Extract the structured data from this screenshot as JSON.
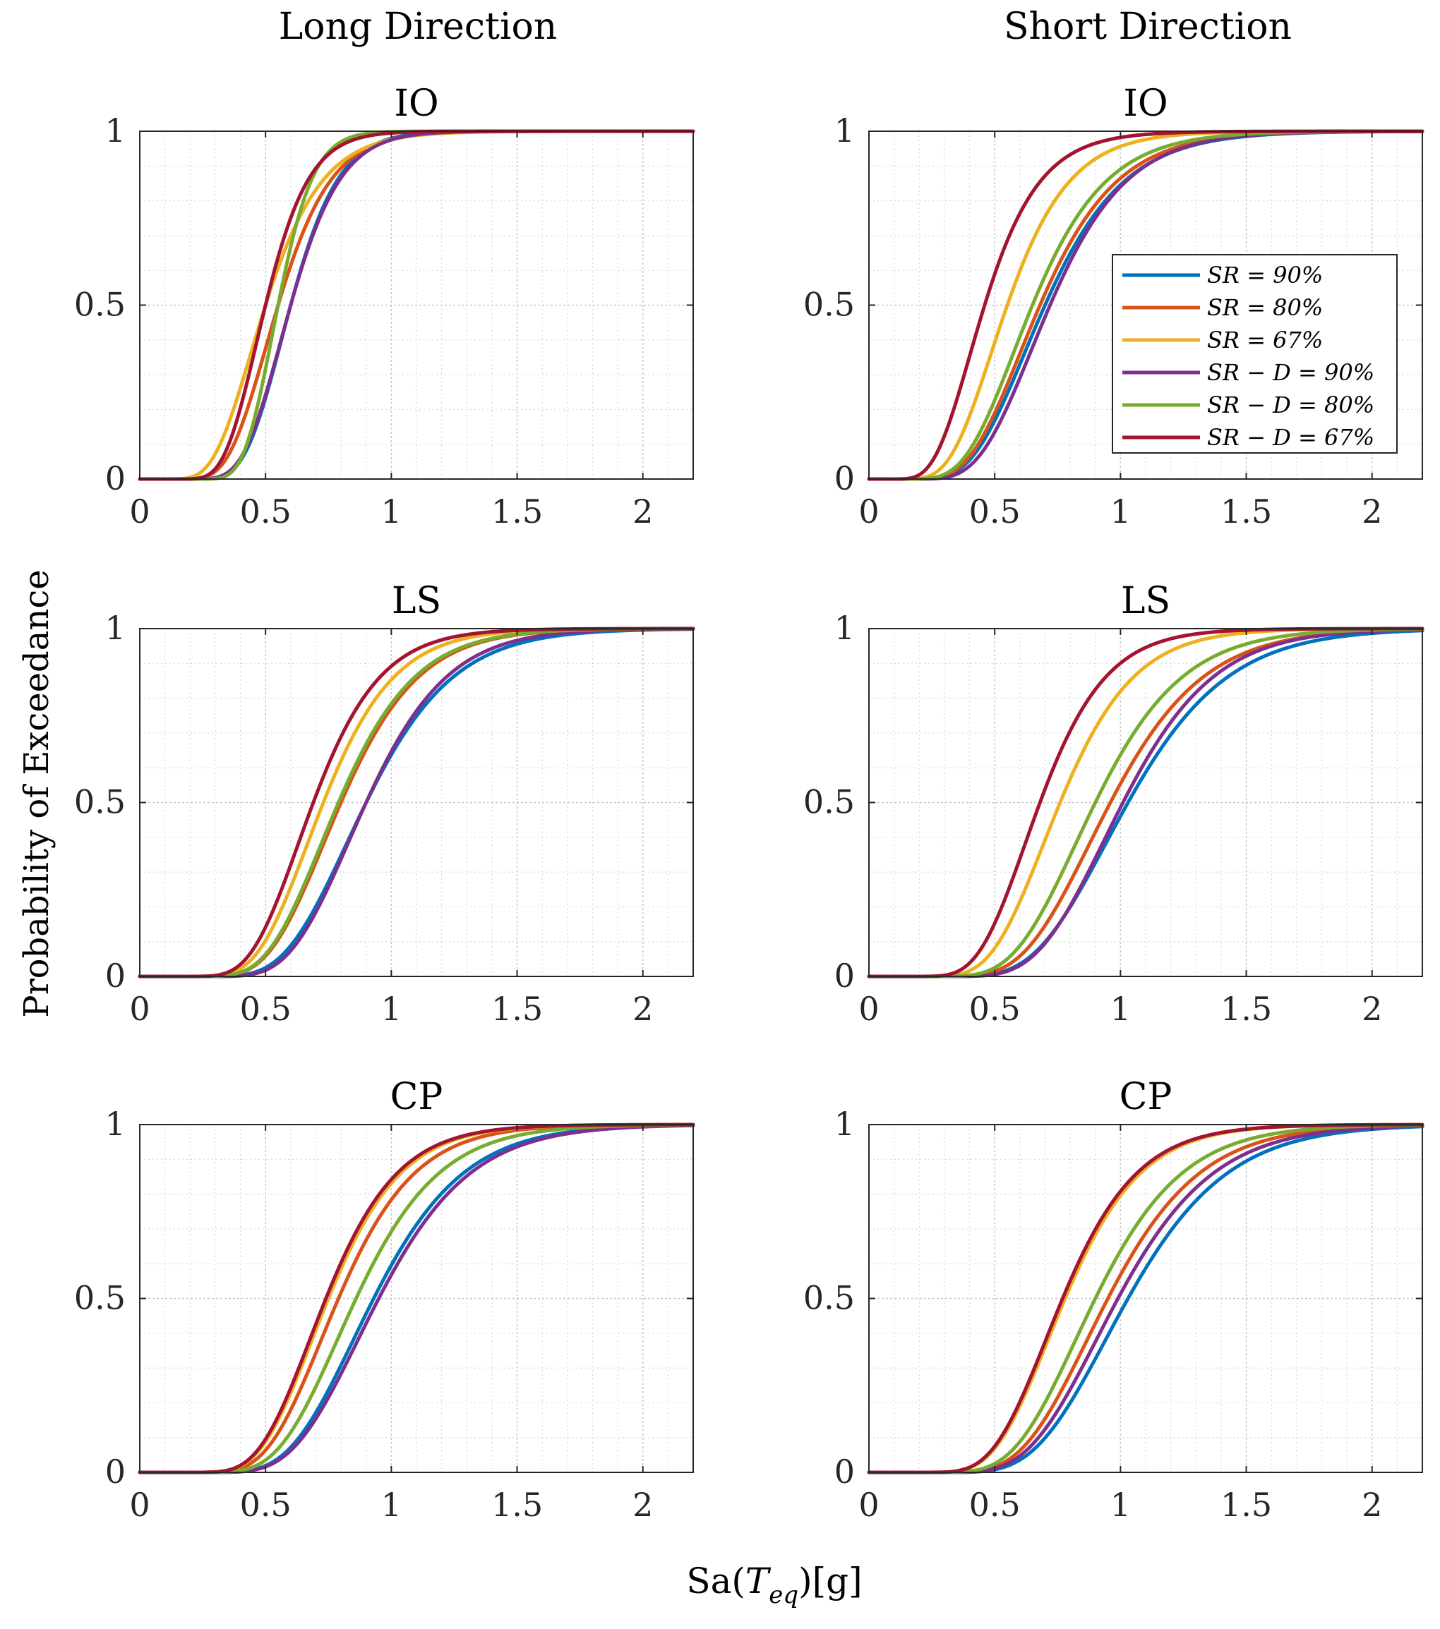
{
  "figure": {
    "column_titles": [
      "Long Direction",
      "Short Direction"
    ],
    "ylabel": "Probability of Exceedance",
    "xlabel_main": "Sa(",
    "xlabel_T": "T",
    "xlabel_sub": "eq",
    "xlabel_tail": ")[g]"
  },
  "legend": {
    "entries": [
      {
        "label": "SR = 90%",
        "color": "#0072BD"
      },
      {
        "label": "SR = 80%",
        "color": "#D95319"
      },
      {
        "label": "SR = 67%",
        "color": "#EDB120"
      },
      {
        "label": "SR − D = 90%",
        "color": "#7E2F8E"
      },
      {
        "label": "SR − D = 80%",
        "color": "#77AC30"
      },
      {
        "label": "SR − D = 67%",
        "color": "#A2142F"
      }
    ],
    "placement": "top-right panel, right-center"
  },
  "chart_data": [
    {
      "type": "line",
      "title": "IO",
      "column": "Long Direction",
      "xlim": [
        0,
        2.2
      ],
      "ylim": [
        0,
        1
      ],
      "xticks": [
        "0",
        "0.5",
        "1",
        "1.5",
        "2"
      ],
      "yticks": [
        "0",
        "0.5",
        "1"
      ],
      "curve_model": "lognormal CDF (median, beta)",
      "series": [
        {
          "name": "SR = 90%",
          "color": "#0072BD",
          "median": 0.6,
          "beta": 0.25
        },
        {
          "name": "SR = 80%",
          "color": "#D95319",
          "median": 0.55,
          "beta": 0.3
        },
        {
          "name": "SR = 67%",
          "color": "#EDB120",
          "median": 0.5,
          "beta": 0.35
        },
        {
          "name": "SR − D = 90%",
          "color": "#7E2F8E",
          "median": 0.6,
          "beta": 0.26
        },
        {
          "name": "SR − D = 80%",
          "color": "#77AC30",
          "median": 0.55,
          "beta": 0.2
        },
        {
          "name": "SR − D = 67%",
          "color": "#A2142F",
          "median": 0.5,
          "beta": 0.27
        }
      ]
    },
    {
      "type": "line",
      "title": "IO",
      "column": "Short Direction",
      "xlim": [
        0,
        2.2
      ],
      "ylim": [
        0,
        1
      ],
      "xticks": [
        "0",
        "0.5",
        "1",
        "1.5",
        "2"
      ],
      "yticks": [
        "0",
        "0.5",
        "1"
      ],
      "curve_model": "lognormal CDF (median, beta)",
      "series": [
        {
          "name": "SR = 90%",
          "color": "#0072BD",
          "median": 0.7,
          "beta": 0.35
        },
        {
          "name": "SR = 80%",
          "color": "#D95319",
          "median": 0.68,
          "beta": 0.35
        },
        {
          "name": "SR = 67%",
          "color": "#EDB120",
          "median": 0.55,
          "beta": 0.35
        },
        {
          "name": "SR − D = 90%",
          "color": "#7E2F8E",
          "median": 0.72,
          "beta": 0.33
        },
        {
          "name": "SR − D = 80%",
          "color": "#77AC30",
          "median": 0.65,
          "beta": 0.35
        },
        {
          "name": "SR − D = 67%",
          "color": "#A2142F",
          "median": 0.46,
          "beta": 0.37
        }
      ]
    },
    {
      "type": "line",
      "title": "LS",
      "column": "Long Direction",
      "xlim": [
        0,
        2.2
      ],
      "ylim": [
        0,
        1
      ],
      "xticks": [
        "0",
        "0.5",
        "1",
        "1.5",
        "2"
      ],
      "yticks": [
        "0",
        "0.5",
        "1"
      ],
      "curve_model": "lognormal CDF (median, beta)",
      "series": [
        {
          "name": "SR = 90%",
          "color": "#0072BD",
          "median": 0.9,
          "beta": 0.3
        },
        {
          "name": "SR = 80%",
          "color": "#D95319",
          "median": 0.8,
          "beta": 0.3
        },
        {
          "name": "SR = 67%",
          "color": "#EDB120",
          "median": 0.73,
          "beta": 0.3
        },
        {
          "name": "SR − D = 90%",
          "color": "#7E2F8E",
          "median": 0.9,
          "beta": 0.28
        },
        {
          "name": "SR − D = 80%",
          "color": "#77AC30",
          "median": 0.79,
          "beta": 0.3
        },
        {
          "name": "SR − D = 67%",
          "color": "#A2142F",
          "median": 0.69,
          "beta": 0.3
        }
      ]
    },
    {
      "type": "line",
      "title": "LS",
      "column": "Short Direction",
      "xlim": [
        0,
        2.2
      ],
      "ylim": [
        0,
        1
      ],
      "xticks": [
        "0",
        "0.5",
        "1",
        "1.5",
        "2"
      ],
      "yticks": [
        "0",
        "0.5",
        "1"
      ],
      "curve_model": "lognormal CDF (median, beta)",
      "series": [
        {
          "name": "SR = 90%",
          "color": "#0072BD",
          "median": 1.03,
          "beta": 0.3
        },
        {
          "name": "SR = 80%",
          "color": "#D95319",
          "median": 0.96,
          "beta": 0.3
        },
        {
          "name": "SR = 67%",
          "color": "#EDB120",
          "median": 0.76,
          "beta": 0.3
        },
        {
          "name": "SR − D = 90%",
          "color": "#7E2F8E",
          "median": 1.01,
          "beta": 0.28
        },
        {
          "name": "SR − D = 80%",
          "color": "#77AC30",
          "median": 0.9,
          "beta": 0.3
        },
        {
          "name": "SR − D = 67%",
          "color": "#A2142F",
          "median": 0.68,
          "beta": 0.3
        }
      ]
    },
    {
      "type": "line",
      "title": "CP",
      "column": "Long Direction",
      "xlim": [
        0,
        2.2
      ],
      "ylim": [
        0,
        1
      ],
      "xticks": [
        "0",
        "0.5",
        "1",
        "1.5",
        "2"
      ],
      "yticks": [
        "0",
        "0.5",
        "1"
      ],
      "curve_model": "lognormal CDF (median, beta)",
      "series": [
        {
          "name": "SR = 90%",
          "color": "#0072BD",
          "median": 0.93,
          "beta": 0.3
        },
        {
          "name": "SR = 80%",
          "color": "#D95319",
          "median": 0.79,
          "beta": 0.3
        },
        {
          "name": "SR = 67%",
          "color": "#EDB120",
          "median": 0.75,
          "beta": 0.3
        },
        {
          "name": "SR − D = 90%",
          "color": "#7E2F8E",
          "median": 0.95,
          "beta": 0.3
        },
        {
          "name": "SR − D = 80%",
          "color": "#77AC30",
          "median": 0.86,
          "beta": 0.3
        },
        {
          "name": "SR − D = 67%",
          "color": "#A2142F",
          "median": 0.74,
          "beta": 0.3
        }
      ]
    },
    {
      "type": "line",
      "title": "CP",
      "column": "Short Direction",
      "xlim": [
        0,
        2.2
      ],
      "ylim": [
        0,
        1
      ],
      "xticks": [
        "0",
        "0.5",
        "1",
        "1.5",
        "2"
      ],
      "yticks": [
        "0",
        "0.5",
        "1"
      ],
      "curve_model": "lognormal CDF (median, beta)",
      "series": [
        {
          "name": "SR = 90%",
          "color": "#0072BD",
          "median": 1.03,
          "beta": 0.3
        },
        {
          "name": "SR = 80%",
          "color": "#D95319",
          "median": 0.95,
          "beta": 0.3
        },
        {
          "name": "SR = 67%",
          "color": "#EDB120",
          "median": 0.78,
          "beta": 0.3
        },
        {
          "name": "SR − D = 90%",
          "color": "#7E2F8E",
          "median": 0.99,
          "beta": 0.3
        },
        {
          "name": "SR − D = 80%",
          "color": "#77AC30",
          "median": 0.9,
          "beta": 0.3
        },
        {
          "name": "SR − D = 67%",
          "color": "#A2142F",
          "median": 0.77,
          "beta": 0.3
        }
      ]
    }
  ]
}
